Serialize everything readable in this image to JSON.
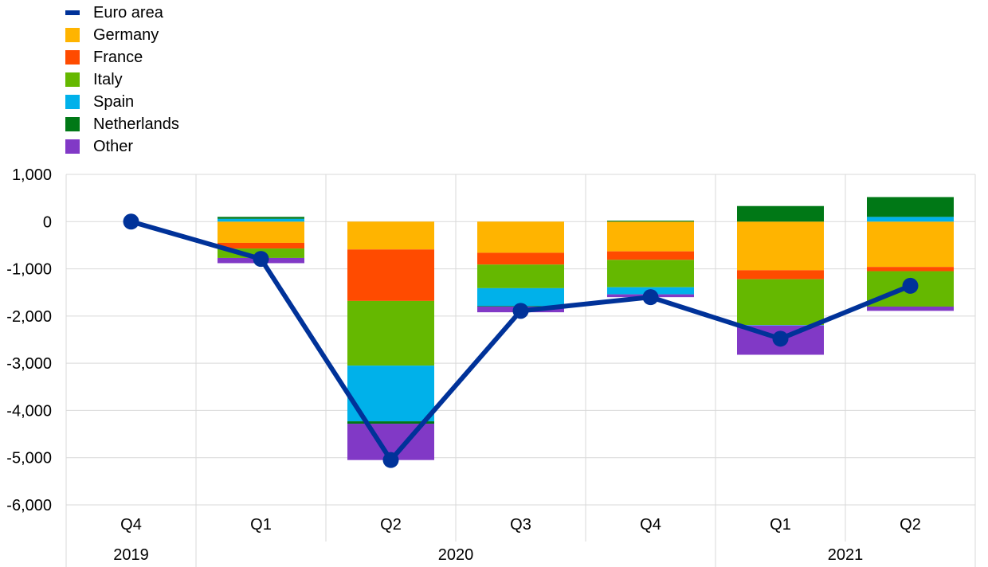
{
  "chart_data": {
    "type": "bar",
    "stacked": true,
    "categories": [
      "Q4",
      "Q1",
      "Q2",
      "Q3",
      "Q4",
      "Q1",
      "Q2"
    ],
    "years": [
      {
        "label": "2019",
        "start": 0,
        "end": 0
      },
      {
        "label": "2020",
        "start": 1,
        "end": 4
      },
      {
        "label": "2021",
        "start": 5,
        "end": 6
      }
    ],
    "ylim": [
      -6000,
      1000
    ],
    "yticks": [
      1000,
      0,
      -1000,
      -2000,
      -3000,
      -4000,
      -5000,
      -6000
    ],
    "ytick_labels": [
      "1,000",
      "0",
      "-1,000",
      "-2,000",
      "-3,000",
      "-4,000",
      "-5,000",
      "-6,000"
    ],
    "grid": true,
    "legend_position": "top-left",
    "series": [
      {
        "name": "Germany",
        "color": "#ffb400",
        "values": [
          0,
          -450,
          -590,
          -660,
          -630,
          -1030,
          -960
        ]
      },
      {
        "name": "France",
        "color": "#ff4b00",
        "values": [
          0,
          -120,
          -1090,
          -250,
          -180,
          -190,
          -90
        ]
      },
      {
        "name": "Italy",
        "color": "#65b800",
        "values": [
          0,
          -200,
          -1370,
          -500,
          -580,
          -970,
          -750
        ]
      },
      {
        "name": "Spain",
        "color": "#00b1ea",
        "values": [
          0,
          60,
          -1180,
          -380,
          -150,
          -10,
          100
        ]
      },
      {
        "name": "Netherlands",
        "color": "#007816",
        "values": [
          0,
          40,
          -50,
          -10,
          20,
          330,
          420
        ]
      },
      {
        "name": "Other",
        "color": "#8139c6",
        "values": [
          0,
          -110,
          -770,
          -120,
          -60,
          -620,
          -90
        ]
      }
    ],
    "line": {
      "name": "Euro area",
      "color": "#003299",
      "values": [
        0,
        -790,
        -5050,
        -1890,
        -1600,
        -2480,
        -1360
      ]
    }
  }
}
